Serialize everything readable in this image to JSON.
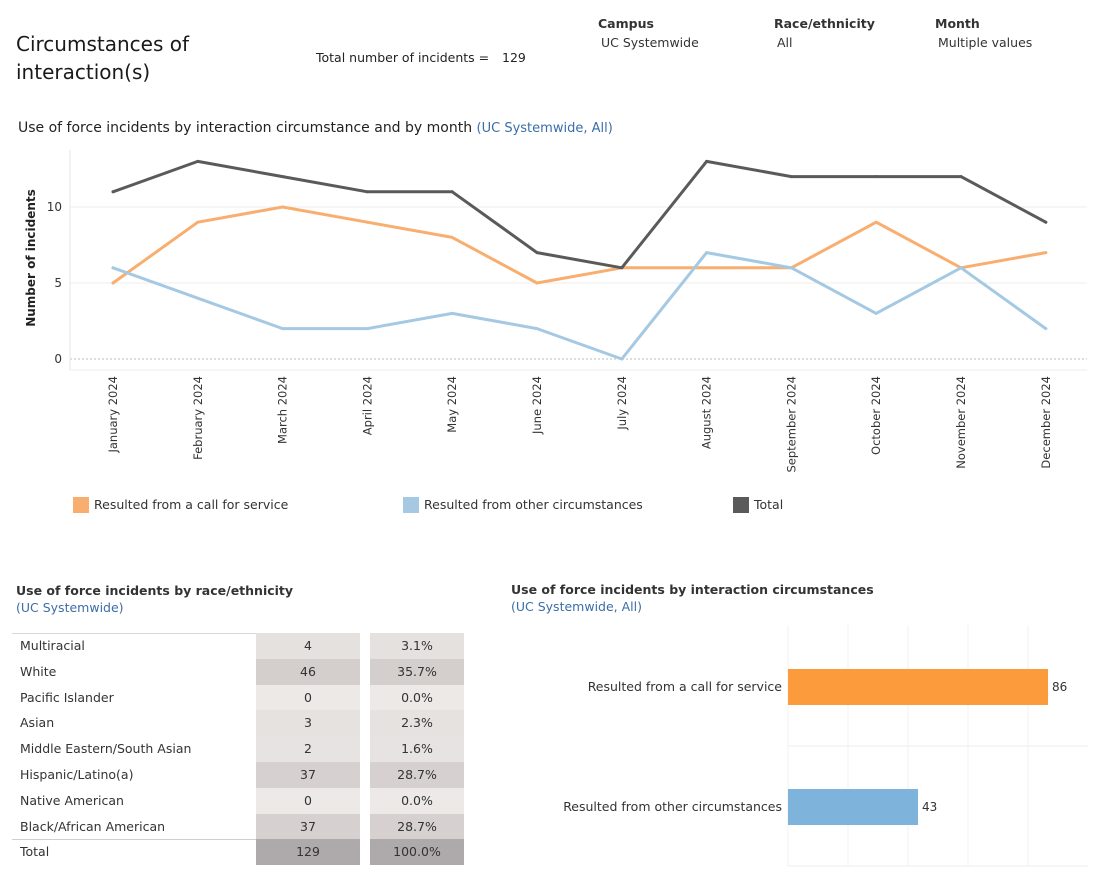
{
  "page": {
    "title": "Circumstances of interaction(s)",
    "total_label": "Total number of incidents =",
    "total_value": "129"
  },
  "filters": [
    {
      "label": "Campus",
      "value": "UC Systemwide"
    },
    {
      "label": "Race/ethnicity",
      "value": "All"
    },
    {
      "label": "Month",
      "value": "Multiple values"
    }
  ],
  "line_section": {
    "title": "Use of force incidents by interaction circumstance and by month",
    "subtitle": "(UC Systemwide, All)"
  },
  "legend": [
    {
      "label": "Resulted from a call for service",
      "color": "#f8ae6f"
    },
    {
      "label": "Resulted from other circumstances",
      "color": "#a5c9e2"
    },
    {
      "label": "Total",
      "color": "#5a5a5a"
    }
  ],
  "race_section": {
    "title": "Use of force incidents by race/ethnicity",
    "subtitle": "(UC Systemwide)"
  },
  "bar_section": {
    "title": "Use of force incidents by interaction circumstances",
    "subtitle": "(UC Systemwide, All)"
  },
  "chart_data": [
    {
      "type": "line",
      "title": "Use of force incidents by interaction circumstance and by month",
      "ylabel": "Number of incidents",
      "xlabel": "",
      "ylim": [
        0,
        14
      ],
      "yticks": [
        0,
        5,
        10
      ],
      "categories": [
        "January 2024",
        "February 2024",
        "March 2024",
        "April 2024",
        "May 2024",
        "June 2024",
        "July 2024",
        "August 2024",
        "September 2024",
        "October 2024",
        "November 2024",
        "December 2024"
      ],
      "series": [
        {
          "name": "Resulted from a call for service",
          "color": "#f8ae6f",
          "values": [
            5,
            9,
            10,
            9,
            8,
            5,
            6,
            6,
            6,
            9,
            6,
            7
          ]
        },
        {
          "name": "Resulted from other circumstances",
          "color": "#a5c9e2",
          "values": [
            6,
            4,
            2,
            2,
            3,
            2,
            0,
            7,
            6,
            3,
            6,
            2
          ]
        },
        {
          "name": "Total",
          "color": "#5a5a5a",
          "values": [
            11,
            13,
            12,
            11,
            11,
            7,
            6,
            13,
            12,
            12,
            12,
            9
          ]
        }
      ],
      "legend_position": "bottom"
    },
    {
      "type": "table",
      "title": "Use of force incidents by race/ethnicity",
      "rows": [
        {
          "label": "Multiracial",
          "count": "4",
          "pct": "3.1%",
          "count_value": 4
        },
        {
          "label": "White",
          "count": "46",
          "pct": "35.7%",
          "count_value": 46
        },
        {
          "label": "Pacific Islander",
          "count": "0",
          "pct": "0.0%",
          "count_value": 0
        },
        {
          "label": "Asian",
          "count": "3",
          "pct": "2.3%",
          "count_value": 3
        },
        {
          "label": "Middle Eastern/South Asian",
          "count": "2",
          "pct": "1.6%",
          "count_value": 2
        },
        {
          "label": "Hispanic/Latino(a)",
          "count": "37",
          "pct": "28.7%",
          "count_value": 37
        },
        {
          "label": "Native American",
          "count": "0",
          "pct": "0.0%",
          "count_value": 0
        },
        {
          "label": "Black/African American",
          "count": "37",
          "pct": "28.7%",
          "count_value": 37
        },
        {
          "label": "Total",
          "count": "129",
          "pct": "100.0%",
          "count_value": 129
        }
      ]
    },
    {
      "type": "bar",
      "orientation": "horizontal",
      "title": "Use of force incidents by interaction circumstances",
      "categories": [
        "Resulted from a call for service",
        "Resulted from other circumstances"
      ],
      "values": [
        86,
        43
      ],
      "colors": [
        "#fb9b3c",
        "#7eb4dc"
      ],
      "xlim": [
        0,
        90
      ]
    }
  ]
}
